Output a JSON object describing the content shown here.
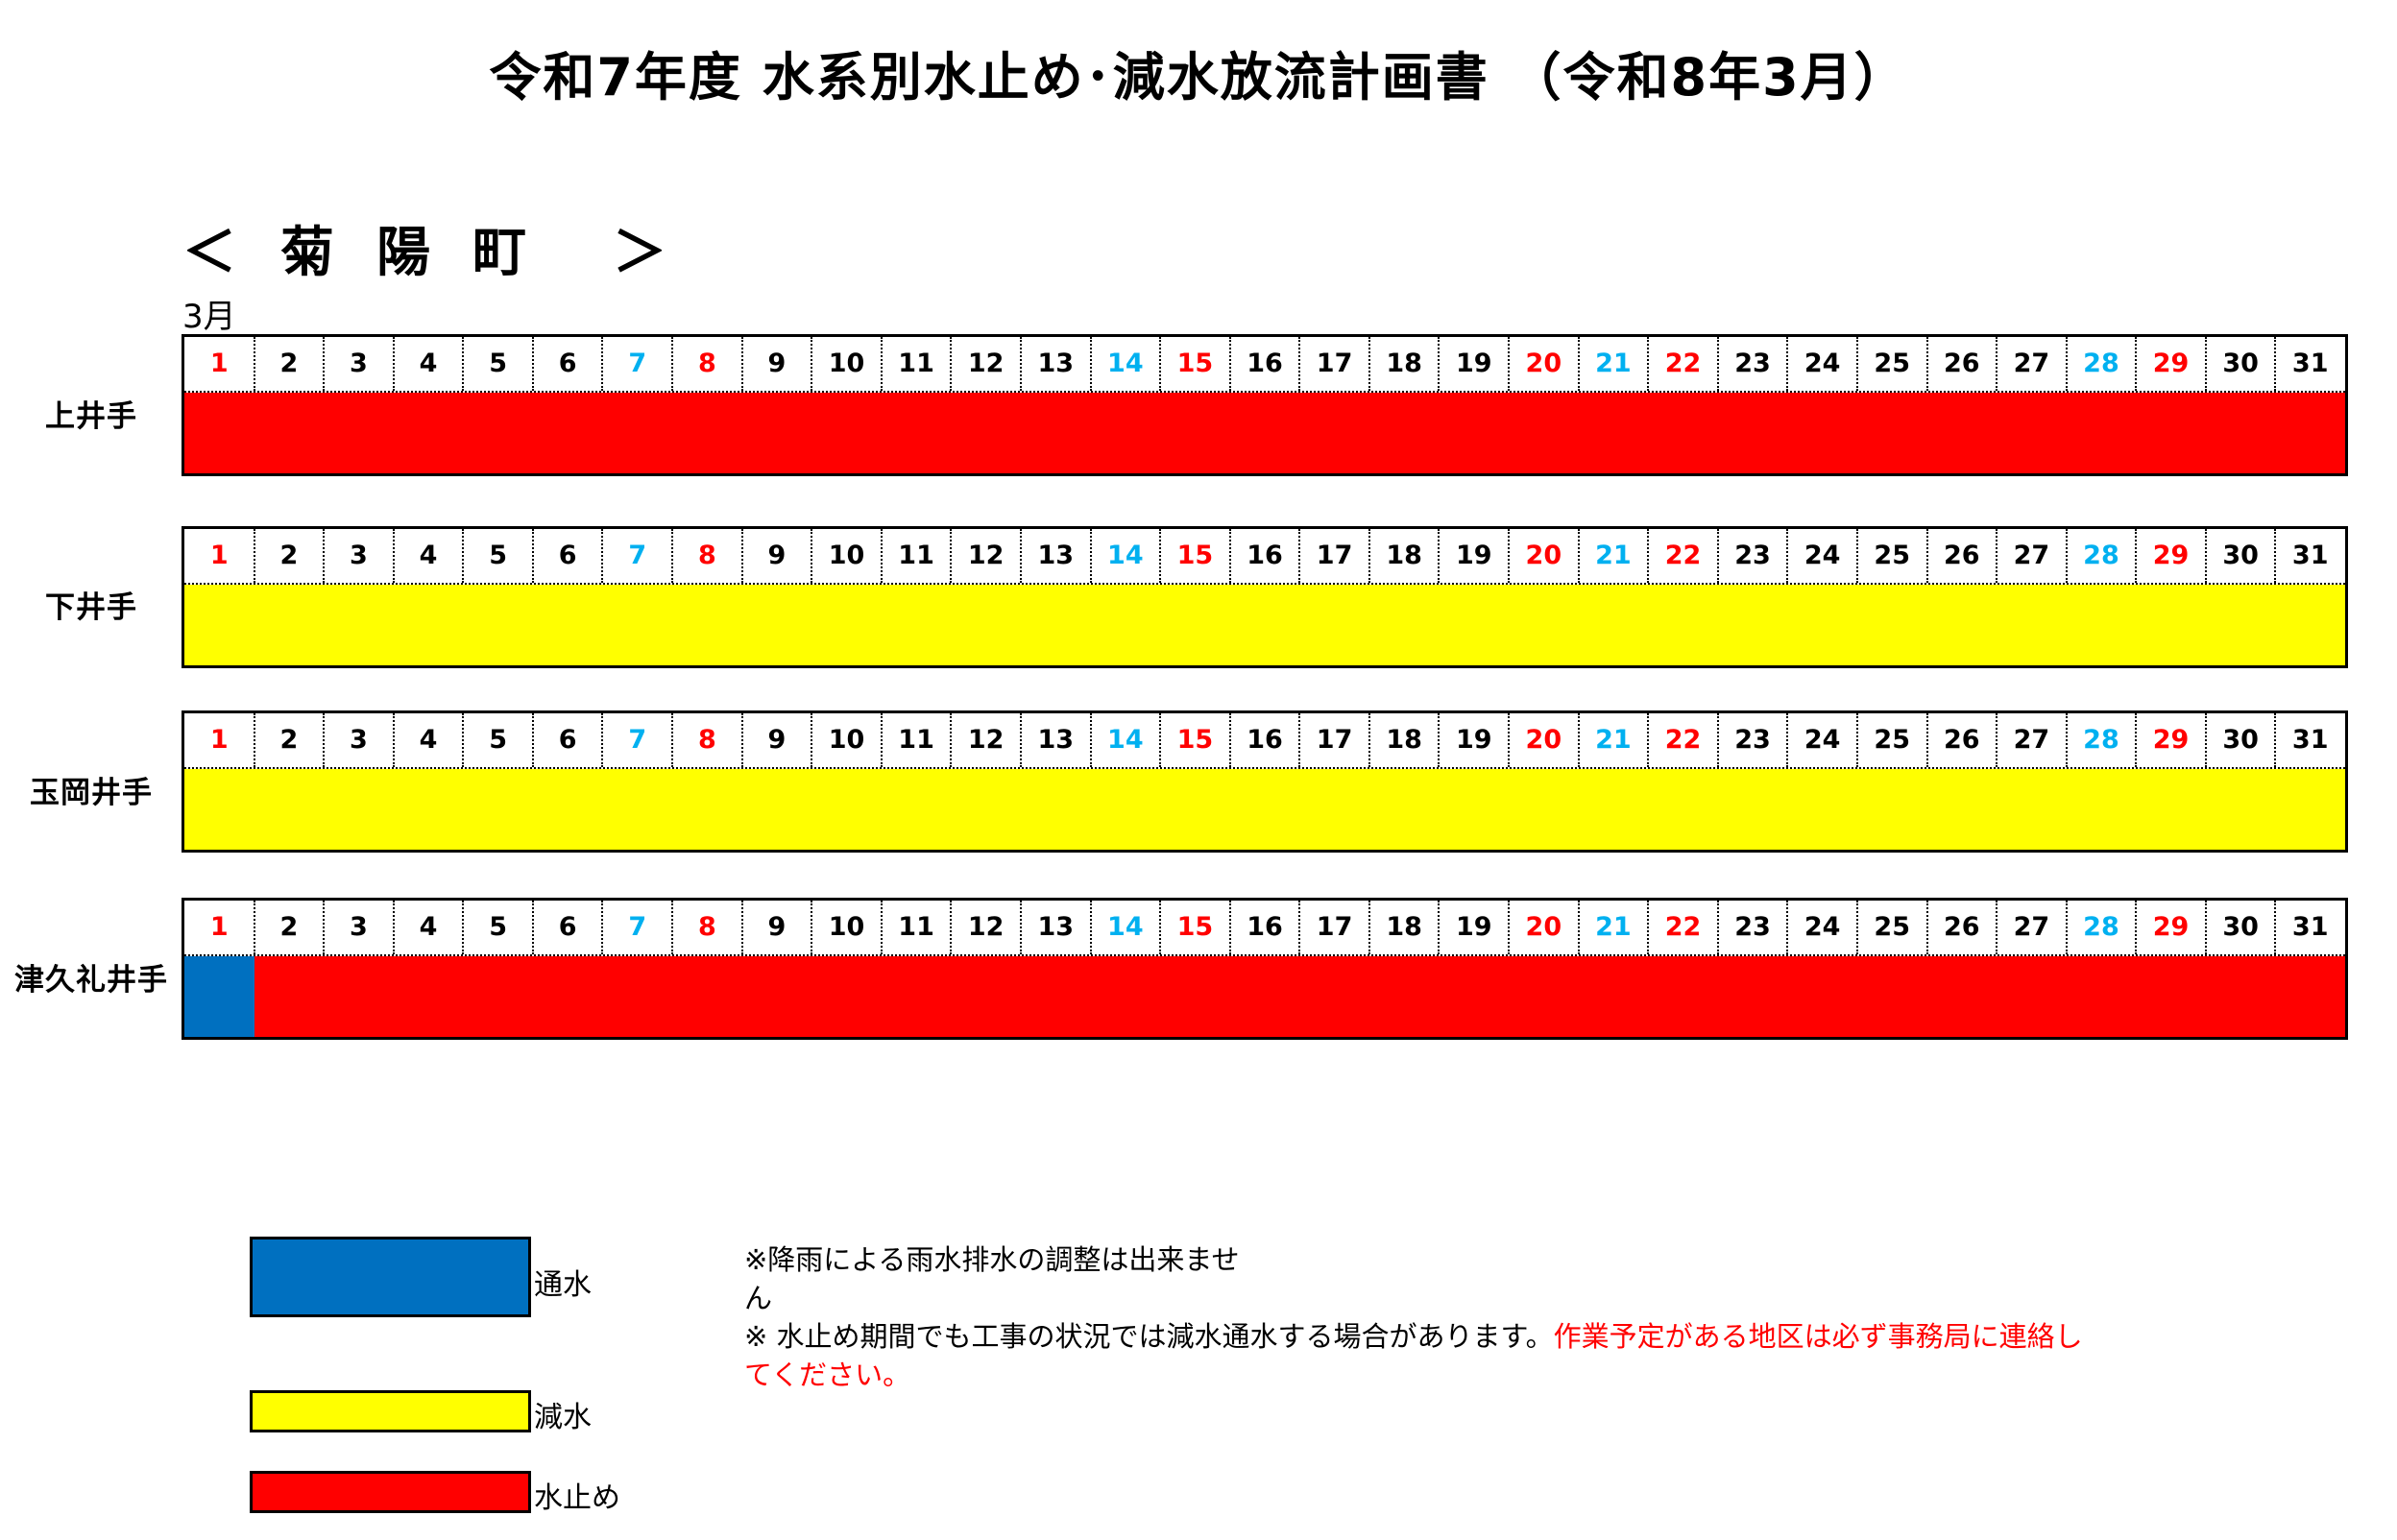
{
  "title": "令和7年度 水系別水止め･減水放流計画書 （令和8年3月）",
  "region": {
    "open": "＜",
    "name": "菊陽町",
    "close": "＞"
  },
  "month_label": "3月",
  "colors": {
    "通水": "#0070c0",
    "減水": "#ffff00",
    "水止め": "#ff0000",
    "weekday": "#000000",
    "saturday": "#00b0f0",
    "holiday": "#ff0000"
  },
  "days": [
    {
      "n": "1",
      "t": "holiday"
    },
    {
      "n": "2",
      "t": "weekday"
    },
    {
      "n": "3",
      "t": "weekday"
    },
    {
      "n": "4",
      "t": "weekday"
    },
    {
      "n": "5",
      "t": "weekday"
    },
    {
      "n": "6",
      "t": "weekday"
    },
    {
      "n": "7",
      "t": "saturday"
    },
    {
      "n": "8",
      "t": "holiday"
    },
    {
      "n": "9",
      "t": "weekday"
    },
    {
      "n": "10",
      "t": "weekday"
    },
    {
      "n": "11",
      "t": "weekday"
    },
    {
      "n": "12",
      "t": "weekday"
    },
    {
      "n": "13",
      "t": "weekday"
    },
    {
      "n": "14",
      "t": "saturday"
    },
    {
      "n": "15",
      "t": "holiday"
    },
    {
      "n": "16",
      "t": "weekday"
    },
    {
      "n": "17",
      "t": "weekday"
    },
    {
      "n": "18",
      "t": "weekday"
    },
    {
      "n": "19",
      "t": "weekday"
    },
    {
      "n": "20",
      "t": "holiday"
    },
    {
      "n": "21",
      "t": "saturday"
    },
    {
      "n": "22",
      "t": "holiday"
    },
    {
      "n": "23",
      "t": "weekday"
    },
    {
      "n": "24",
      "t": "weekday"
    },
    {
      "n": "25",
      "t": "weekday"
    },
    {
      "n": "26",
      "t": "weekday"
    },
    {
      "n": "27",
      "t": "weekday"
    },
    {
      "n": "28",
      "t": "saturday"
    },
    {
      "n": "29",
      "t": "holiday"
    },
    {
      "n": "30",
      "t": "weekday"
    },
    {
      "n": "31",
      "t": "weekday"
    }
  ],
  "canals": [
    {
      "name": "上井手",
      "status": [
        "水止め",
        "水止め",
        "水止め",
        "水止め",
        "水止め",
        "水止め",
        "水止め",
        "水止め",
        "水止め",
        "水止め",
        "水止め",
        "水止め",
        "水止め",
        "水止め",
        "水止め",
        "水止め",
        "水止め",
        "水止め",
        "水止め",
        "水止め",
        "水止め",
        "水止め",
        "水止め",
        "水止め",
        "水止め",
        "水止め",
        "水止め",
        "水止め",
        "水止め",
        "水止め",
        "水止め"
      ]
    },
    {
      "name": "下井手",
      "status": [
        "減水",
        "減水",
        "減水",
        "減水",
        "減水",
        "減水",
        "減水",
        "減水",
        "減水",
        "減水",
        "減水",
        "減水",
        "減水",
        "減水",
        "減水",
        "減水",
        "減水",
        "減水",
        "減水",
        "減水",
        "減水",
        "減水",
        "減水",
        "減水",
        "減水",
        "減水",
        "減水",
        "減水",
        "減水",
        "減水",
        "減水"
      ]
    },
    {
      "name": "玉岡井手",
      "status": [
        "減水",
        "減水",
        "減水",
        "減水",
        "減水",
        "減水",
        "減水",
        "減水",
        "減水",
        "減水",
        "減水",
        "減水",
        "減水",
        "減水",
        "減水",
        "減水",
        "減水",
        "減水",
        "減水",
        "減水",
        "減水",
        "減水",
        "減水",
        "減水",
        "減水",
        "減水",
        "減水",
        "減水",
        "減水",
        "減水",
        "減水"
      ]
    },
    {
      "name": "津久礼井手",
      "status": [
        "通水",
        "水止め",
        "水止め",
        "水止め",
        "水止め",
        "水止め",
        "水止め",
        "水止め",
        "水止め",
        "水止め",
        "水止め",
        "水止め",
        "水止め",
        "水止め",
        "水止め",
        "水止め",
        "水止め",
        "水止め",
        "水止め",
        "水止め",
        "水止め",
        "水止め",
        "水止め",
        "水止め",
        "水止め",
        "水止め",
        "水止め",
        "水止め",
        "水止め",
        "水止め",
        "水止め"
      ]
    }
  ],
  "legend": [
    {
      "key": "通水",
      "label": "通水"
    },
    {
      "key": "減水",
      "label": "減水"
    },
    {
      "key": "水止め",
      "label": "水止め"
    }
  ],
  "notes": {
    "line1a": "※降雨による雨水排水の調整は出来ませ",
    "line1b": "ん",
    "line2_black": "※ 水止め期間でも工事の状況では減水通水する場合があります。",
    "line2_red_a": "作業予定がある地区は必ず事務局に連絡し",
    "line2_red_b": "てください。"
  }
}
